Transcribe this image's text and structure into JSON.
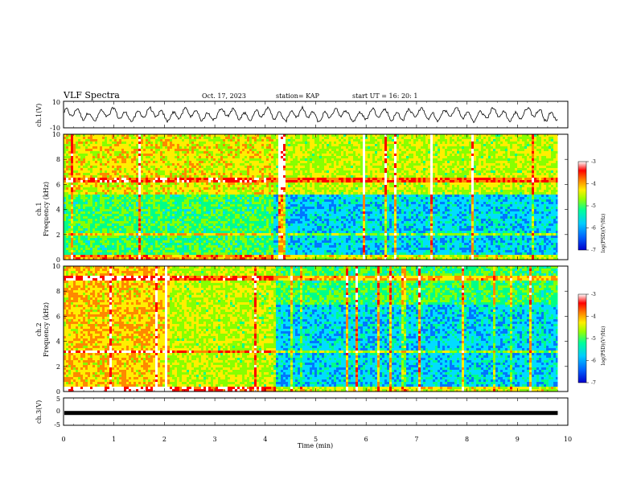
{
  "header": {
    "title": "VLF Spectra",
    "date": "Oct. 17, 2023",
    "station": "station= KAP",
    "start": "start  UT =   16: 20: 1"
  },
  "xaxis": {
    "label": "Time (min)",
    "ticks": [
      "0",
      "1",
      "2",
      "3",
      "4",
      "5",
      "6",
      "7",
      "8",
      "9",
      "10"
    ]
  },
  "panels": {
    "ch1_wave": {
      "ylabel": "ch.1(V)",
      "ticks": [
        "10",
        "-10"
      ]
    },
    "ch1_spec": {
      "ylabel1": "ch.1",
      "ylabel2": "Frequency (kHz)",
      "ticks": [
        "10",
        "8",
        "6",
        "4",
        "2",
        "0"
      ]
    },
    "ch2_spec": {
      "ylabel1": "ch.2",
      "ylabel2": "Frequency (kHz)",
      "ticks": [
        "10",
        "8",
        "6",
        "4",
        "2",
        "0"
      ]
    },
    "ch3_wave": {
      "ylabel": "ch.3(V)",
      "ticks": [
        "5",
        "0",
        "-5"
      ]
    }
  },
  "colorbars": [
    {
      "label": "log(PSD)(V²/Hz)",
      "ticks": [
        "-3",
        "-4",
        "-5",
        "-6",
        "-7"
      ]
    },
    {
      "label": "log(PSD)(V²/Hz)",
      "ticks": [
        "-3",
        "-4",
        "-5",
        "-6",
        "-7"
      ]
    }
  ],
  "colors": {
    "colormap": [
      "#0000ff",
      "#0077ff",
      "#00ddff",
      "#00ff88",
      "#88ff00",
      "#ffee00",
      "#ff8800",
      "#ff0000",
      "#ffffff"
    ]
  },
  "chart_data": [
    {
      "type": "line",
      "title": "VLF Spectra",
      "ylabel": "ch.1(V)",
      "xlabel": "Time (min)",
      "xlim": [
        0,
        10
      ],
      "ylim": [
        -10,
        10
      ],
      "data_extent_x": [
        0,
        9.8
      ],
      "description_values": "oscillating waveform roughly between -6 and 6 V"
    },
    {
      "type": "heatmap",
      "ylabel": "Frequency (kHz)",
      "xlabel": "Time (min)",
      "xlim": [
        0,
        10
      ],
      "ylim": [
        0,
        10
      ],
      "zlabel": "log(PSD)(V²/Hz)",
      "zlim": [
        -7,
        -3
      ],
      "regime_change_min": [
        4.15
      ],
      "segments": [
        {
          "x": [
            0,
            4.15
          ],
          "low_band_max_khz": 5.2,
          "low_band_log_psd": -5.3,
          "high_band_log_psd": -4.6
        },
        {
          "x": [
            4.15,
            9.8
          ],
          "low_band_max_khz": 5.2,
          "low_band_log_psd": -5.9,
          "high_band_log_psd": -4.8
        }
      ]
    },
    {
      "type": "heatmap",
      "ylabel": "Frequency (kHz)",
      "xlabel": "Time (min)",
      "xlim": [
        0,
        10
      ],
      "ylim": [
        0,
        10
      ],
      "zlabel": "log(PSD)(V²/Hz)",
      "zlim": [
        -7,
        -3
      ],
      "regime_change_min": [
        2.1,
        4.2
      ],
      "segments": [
        {
          "x": [
            0,
            2.1
          ],
          "mean_log_psd": -4.4
        },
        {
          "x": [
            2.1,
            4.2
          ],
          "mean_log_psd": -4.8
        },
        {
          "x": [
            4.2,
            9.8
          ],
          "mean_log_psd": -5.9
        }
      ]
    },
    {
      "type": "line",
      "ylabel": "ch.3(V)",
      "xlabel": "Time (min)",
      "xlim": [
        0,
        10
      ],
      "ylim": [
        -5,
        5
      ],
      "data_extent_x": [
        0,
        9.8
      ],
      "description_values": "constant near -0.5 V"
    }
  ]
}
